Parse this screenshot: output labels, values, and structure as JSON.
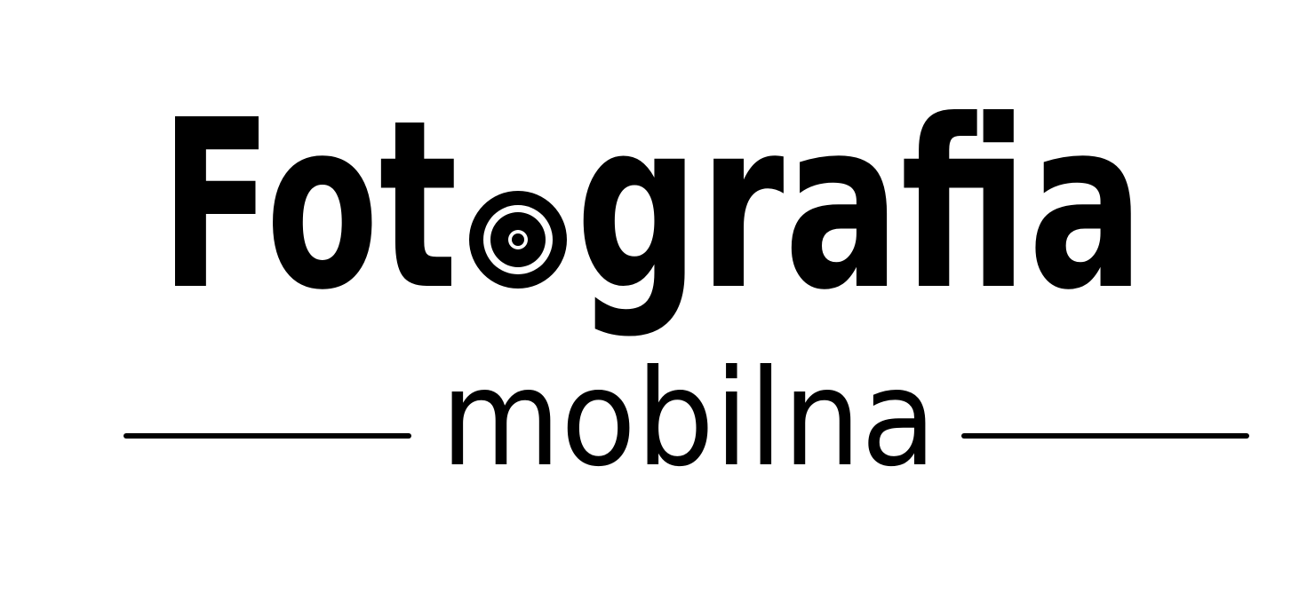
{
  "logo": {
    "main_word": "Fotografia",
    "main_word_before": "Fot",
    "main_word_after": "grafia",
    "sub_word": "mobilna",
    "lens_icon": "camera-lens-icon",
    "ink_color": "#000000",
    "background_color": "#ffffff"
  }
}
